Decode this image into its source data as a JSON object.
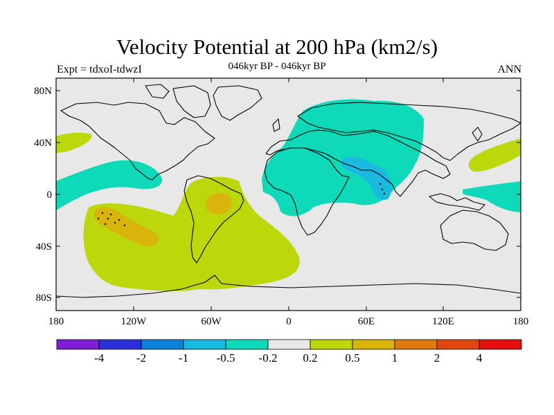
{
  "title": "Velocity Potential at 200 hPa (km2/s)",
  "subtitle": "046kyr BP - 046kyr BP",
  "left_label": "Expt = tdxoI-tdwzI",
  "right_label": "ANN",
  "y_ticks": [
    "80N",
    "40N",
    "0",
    "40S",
    "80S"
  ],
  "x_ticks": [
    "180",
    "120W",
    "60W",
    "0",
    "60E",
    "120E",
    "180"
  ],
  "colorbar": {
    "colors": [
      "#7e1fd6",
      "#2a2fd8",
      "#0d82dc",
      "#19b9e0",
      "#0ed9b9",
      "#e8e8e8",
      "#bcd80a",
      "#d9b40a",
      "#e07a0e",
      "#e0470e",
      "#e41010"
    ],
    "labels": [
      "-4",
      "-2",
      "-1",
      "-0.5",
      "-0.2",
      "0.2",
      "0.5",
      "1",
      "2",
      "4"
    ]
  },
  "map": {
    "background_color": "#e8e8e8",
    "regions": [
      {
        "name": "east-pacific-negative",
        "color": "#0ed9b9"
      },
      {
        "name": "eurasia-negative",
        "color": "#0ed9b9"
      },
      {
        "name": "arabia-india-negative-core",
        "color": "#19b9e0"
      },
      {
        "name": "west-pacific-negative",
        "color": "#0ed9b9"
      },
      {
        "name": "south-pacific-atlantic-positive",
        "color": "#bcd80a"
      },
      {
        "name": "north-pacific-positive",
        "color": "#bcd80a"
      },
      {
        "name": "northwest-pacific-positive",
        "color": "#bcd80a"
      },
      {
        "name": "south-pacific-positive-core",
        "color": "#d9b40a"
      },
      {
        "name": "amazon-positive-core",
        "color": "#d9b40a"
      }
    ]
  }
}
